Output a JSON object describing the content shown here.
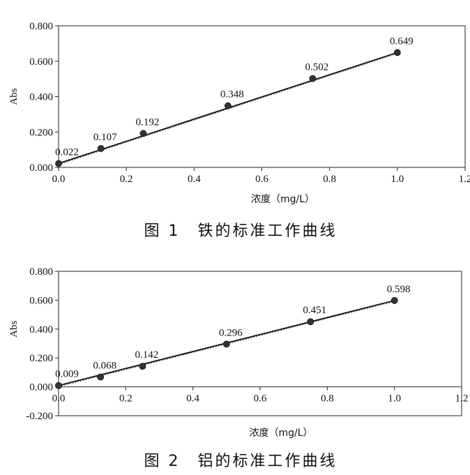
{
  "chart_data": [
    {
      "type": "scatter",
      "caption": "图 1　铁的标准工作曲线",
      "xlabel": "浓度（mg/L）",
      "ylabel": "Abs",
      "xlim": [
        0.0,
        1.2
      ],
      "ylim": [
        0.0,
        0.8
      ],
      "xticks": [
        "0.0",
        "0.2",
        "0.4",
        "0.6",
        "0.8",
        "1.0",
        "1.2"
      ],
      "yticks": [
        "0.000",
        "0.200",
        "0.400",
        "0.600",
        "0.800"
      ],
      "points": [
        {
          "x": 0.0,
          "y": 0.022,
          "label": "0.022"
        },
        {
          "x": 0.125,
          "y": 0.107,
          "label": "0.107"
        },
        {
          "x": 0.25,
          "y": 0.192,
          "label": "0.192"
        },
        {
          "x": 0.5,
          "y": 0.348,
          "label": "0.348"
        },
        {
          "x": 0.75,
          "y": 0.502,
          "label": "0.502"
        },
        {
          "x": 1.0,
          "y": 0.649,
          "label": "0.649"
        }
      ],
      "fit_line": {
        "x": [
          0.0,
          1.0
        ],
        "y": [
          0.022,
          0.649
        ]
      },
      "grid": false
    },
    {
      "type": "scatter",
      "caption": "图 2　铝的标准工作曲线",
      "xlabel": "浓度（mg/L）",
      "ylabel": "Abs",
      "xlim": [
        0.0,
        1.2
      ],
      "ylim": [
        -0.2,
        0.8
      ],
      "xticks": [
        "0.0",
        "0.2",
        "0.4",
        "0.6",
        "0.8",
        "1.0",
        "1.2"
      ],
      "yticks": [
        "-0.200",
        "0.000",
        "0.200",
        "0.400",
        "0.600",
        "0.800"
      ],
      "points": [
        {
          "x": 0.0,
          "y": 0.009,
          "label": "0.009"
        },
        {
          "x": 0.125,
          "y": 0.068,
          "label": "0.068"
        },
        {
          "x": 0.25,
          "y": 0.142,
          "label": "0.142"
        },
        {
          "x": 0.5,
          "y": 0.296,
          "label": "0.296"
        },
        {
          "x": 0.75,
          "y": 0.451,
          "label": "0.451"
        },
        {
          "x": 1.0,
          "y": 0.598,
          "label": "0.598"
        }
      ],
      "fit_line": {
        "x": [
          0.0,
          1.0
        ],
        "y": [
          0.009,
          0.598
        ]
      },
      "grid": false
    }
  ]
}
